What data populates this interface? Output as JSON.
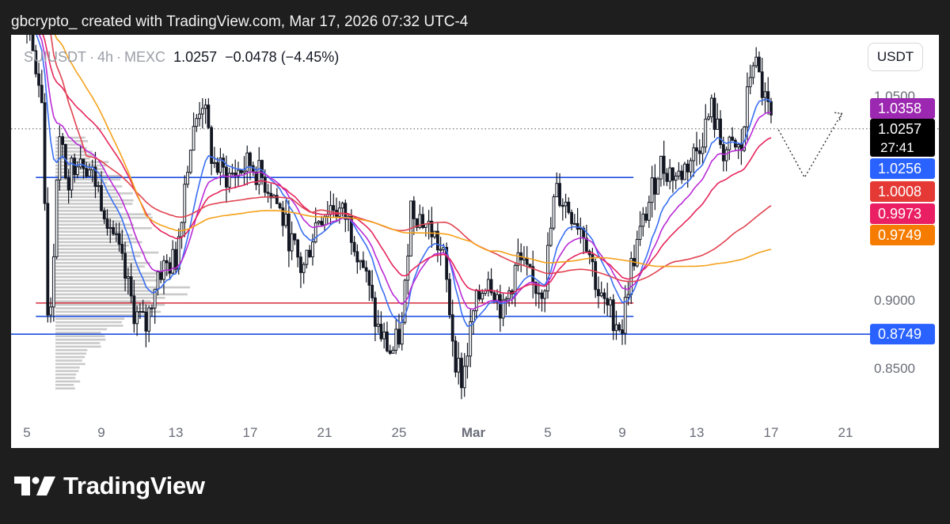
{
  "header": {
    "caption": "gbcrypto_ created with TradingView.com, Mar 17, 2026 07:32 UTC-4"
  },
  "legend": {
    "symbol": "SUIUSDT",
    "interval": "4h",
    "exchange": "MEXC",
    "last": "1.0257",
    "change": "−0.0478 (−4.45%)"
  },
  "unit_button": "USDT",
  "brand": "TradingView",
  "colors": {
    "price_line": "#2962ff",
    "ma_blue": "#3a6ff2",
    "ma_purple": "#b92bd6",
    "ma_pink": "#e6255c",
    "ma_red": "#e04350",
    "ma_orange": "#f5a11b",
    "level_red": "#d63a4a",
    "level_blue": "#1f4fe0",
    "candles": "#131722",
    "volume_profile": "#b8b8b8"
  },
  "chart_data": {
    "type": "line",
    "note_series_type": "candlestick",
    "y_axis": {
      "ticks": [
        1.05,
        0.9,
        0.85
      ],
      "tick_labels": [
        "1.0500",
        "0.9000",
        "0.8500"
      ],
      "range": [
        0.81,
        1.12
      ]
    },
    "x_axis": {
      "tick_labels": [
        "5",
        "9",
        "13",
        "17",
        "21",
        "25",
        "Mar",
        "5",
        "9",
        "13",
        "17",
        "21"
      ],
      "tick_index": [
        0,
        1,
        2,
        3,
        4,
        5,
        6,
        7,
        8,
        9,
        10,
        11
      ]
    },
    "price_labels": [
      {
        "text": "1.0358",
        "value": 1.0358,
        "color": "#9c27b0"
      },
      {
        "text": "1.0257",
        "value": 1.0257,
        "color": "#000000",
        "subtext": "27:41"
      },
      {
        "text": "1.0256",
        "value": 1.0256,
        "color": "#2962ff"
      },
      {
        "text": "1.0008",
        "value": 1.0008,
        "color": "#e53935"
      },
      {
        "text": "0.9973",
        "value": 0.9973,
        "color": "#e91e63"
      },
      {
        "text": "0.9749",
        "value": 0.9749,
        "color": "#f57c00"
      },
      {
        "text": "0.8749",
        "value": 0.8749,
        "color": "#2962ff"
      }
    ],
    "horizontal_levels": [
      {
        "value": 0.99,
        "color": "#1f4fe0",
        "x_from": 0.12,
        "x_to": 8.15
      },
      {
        "value": 0.8978,
        "color": "#d63a4a",
        "x_from": 0.12,
        "x_to": 8.15
      },
      {
        "value": 0.888,
        "color": "#1f4fe0",
        "x_from": 0.12,
        "x_to": 8.15
      },
      {
        "value": 0.8749,
        "color": "#1f4fe0",
        "x_from": -0.3,
        "x_to": 12.2
      }
    ],
    "last_price_line": 1.0257,
    "projection": [
      [
        10.1,
        1.025
      ],
      [
        10.45,
        0.99
      ],
      [
        10.95,
        1.037
      ]
    ],
    "series": [
      {
        "name": "Price",
        "kind": "candles",
        "x": [
          0.0,
          0.25,
          0.5,
          0.75,
          1.0,
          1.25,
          1.5,
          1.75,
          2.0,
          2.25,
          2.5,
          2.75,
          3.0,
          3.25,
          3.5,
          3.75,
          4.0,
          4.25,
          4.5,
          4.75,
          5.0,
          5.25,
          5.5,
          5.75,
          6.0,
          6.25,
          6.5,
          6.75,
          7.0,
          7.25,
          7.5,
          7.75,
          8.0,
          8.25,
          8.5,
          8.75,
          9.0,
          9.25,
          9.5,
          9.75,
          10.0
        ],
        "close": [
          1.08,
          0.96,
          1.02,
          1.01,
          0.99,
          0.94,
          0.92,
          0.93,
          1.04,
          1.0,
          0.99,
          0.98,
          0.96,
          0.97,
          0.95,
          0.9,
          0.88,
          0.93,
          0.95,
          0.9,
          0.9,
          0.91,
          0.91,
          0.88,
          0.89,
          0.9,
          0.92,
          0.93,
          0.91,
          0.9,
          0.9,
          0.95,
          0.99,
          1.0,
          1.005,
          1.01,
          1.0,
          1.01,
          1.06,
          1.05,
          1.0257
        ]
      }
    ]
  }
}
